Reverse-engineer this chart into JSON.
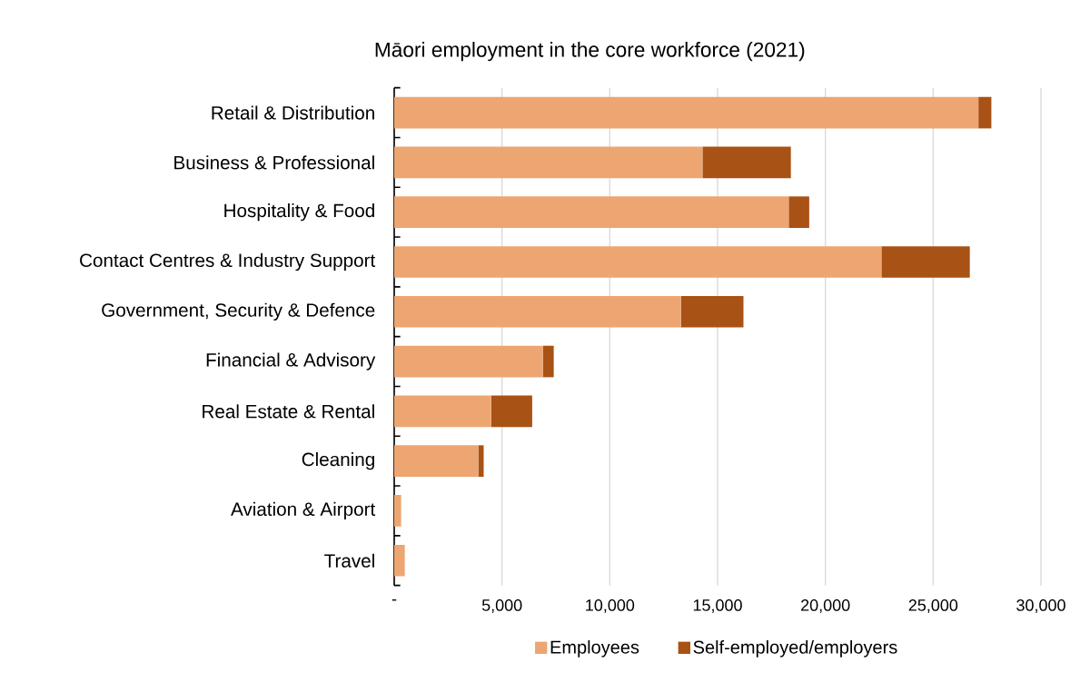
{
  "chart_data": {
    "type": "bar",
    "orientation": "horizontal",
    "stacked": true,
    "title": "Māori employment in the core workforce (2021)",
    "categories": [
      "Retail & Distribution",
      "Business & Professional",
      "Hospitality & Food",
      "Contact Centres & Industry Support",
      "Government, Security & Defence",
      "Financial & Advisory",
      "Real Estate & Rental",
      "Cleaning",
      "Aviation & Airport",
      "Travel"
    ],
    "series": [
      {
        "name": "Employees",
        "color": "#eda572",
        "values": [
          27100,
          14300,
          18300,
          22600,
          13300,
          6900,
          4500,
          3900,
          320,
          490
        ]
      },
      {
        "name": "Self-employed/employers",
        "color": "#a85215",
        "values": [
          600,
          4100,
          950,
          4100,
          2900,
          500,
          1900,
          250,
          null,
          null
        ]
      }
    ],
    "xlim": [
      0,
      30000
    ],
    "xticks": [
      {
        "value": 0,
        "label": "-"
      },
      {
        "value": 5000,
        "label": "5,000"
      },
      {
        "value": 10000,
        "label": "10,000"
      },
      {
        "value": 15000,
        "label": "15,000"
      },
      {
        "value": 20000,
        "label": "20,000"
      },
      {
        "value": 25000,
        "label": "25,000"
      },
      {
        "value": 30000,
        "label": "30,000"
      }
    ],
    "grid": "x",
    "legend": "bottom"
  }
}
